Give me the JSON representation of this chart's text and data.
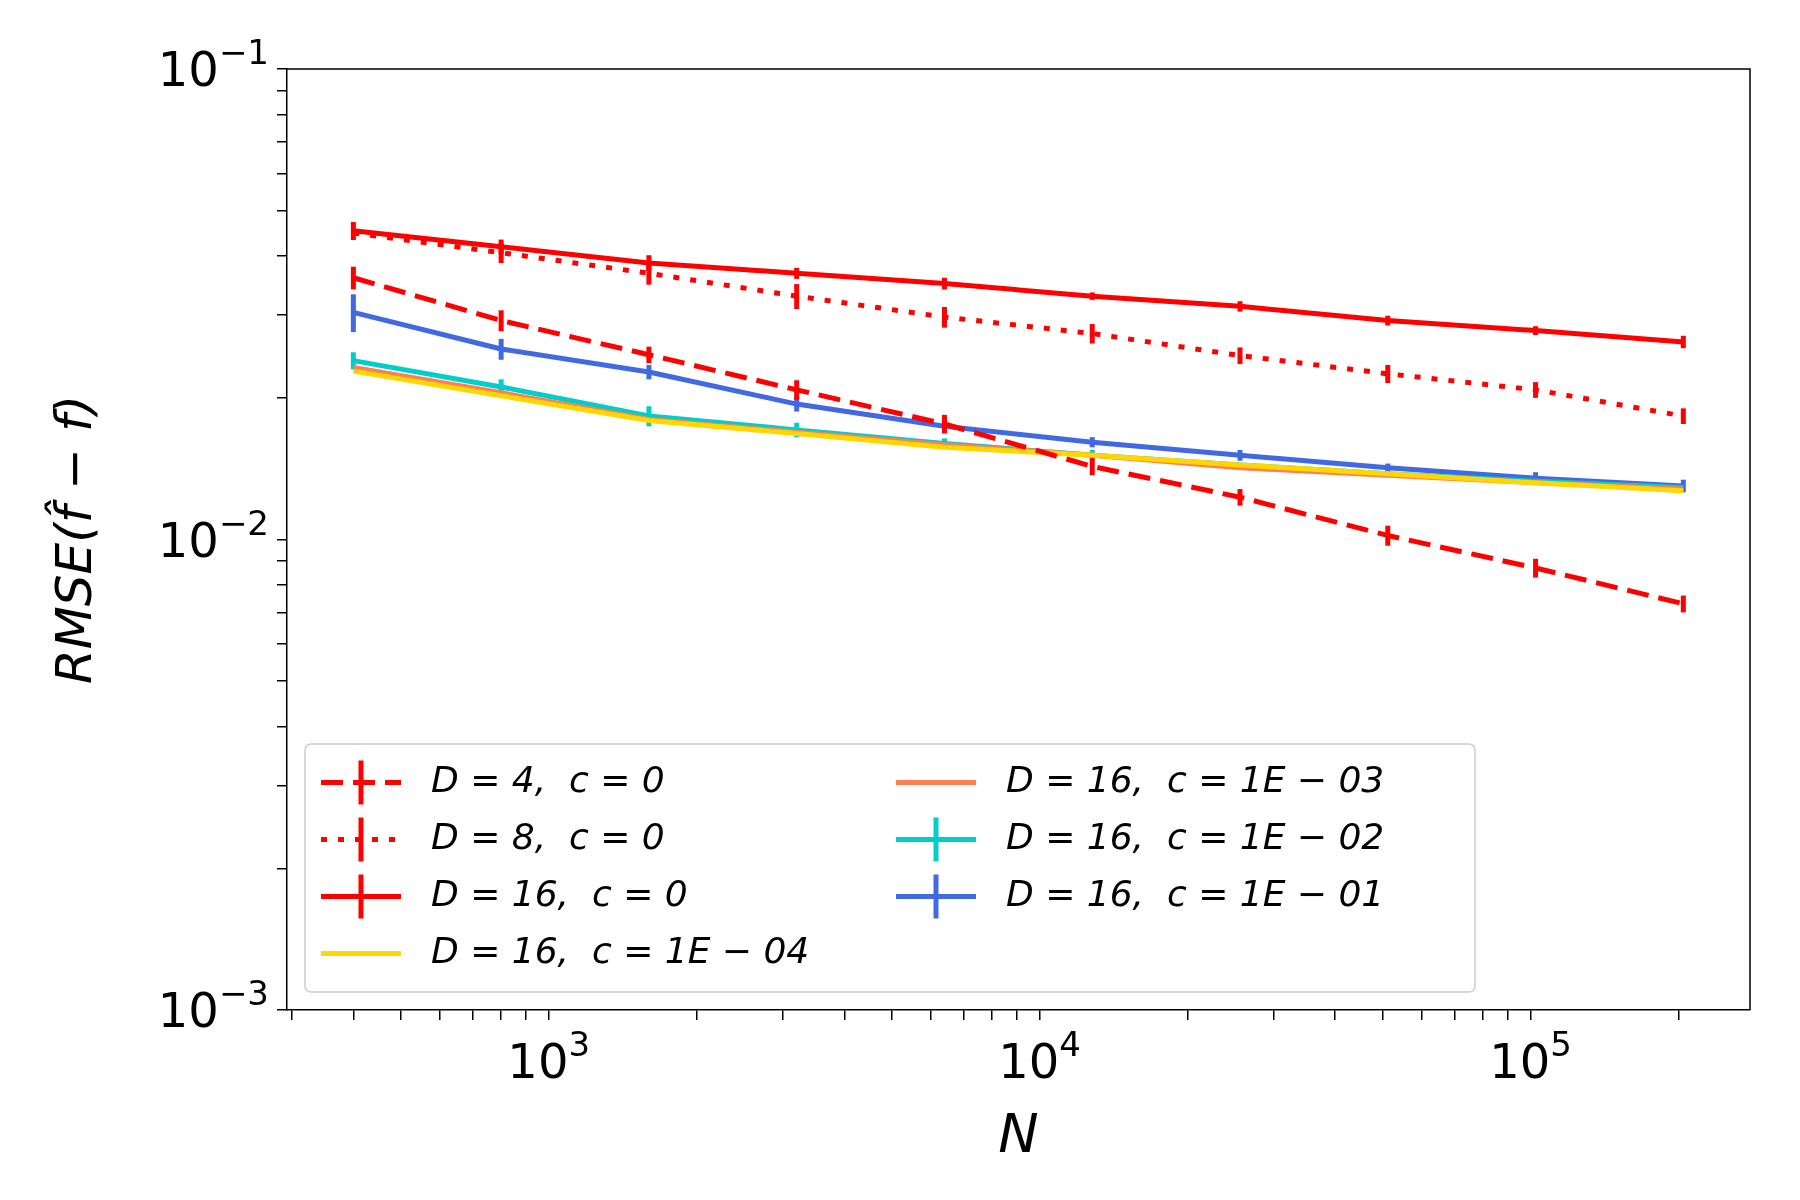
{
  "chart_data": {
    "type": "line",
    "xlabel": "N",
    "ylabel": "RMSE(f̂ − f)",
    "log": "xy",
    "grid": false,
    "legend": "bottom left",
    "marker": "none",
    "x": [
      400,
      800,
      1600,
      3200,
      6400,
      12800,
      25600,
      51200,
      102400,
      204800
    ],
    "xlim": [
      293,
      280000
    ],
    "xticks": [
      {
        "value": 300,
        "label": null
      },
      {
        "value": 400,
        "label": null
      },
      {
        "value": 500,
        "label": null
      },
      {
        "value": 600,
        "label": null
      },
      {
        "value": 700,
        "label": null
      },
      {
        "value": 800,
        "label": null
      },
      {
        "value": 900,
        "label": null
      },
      {
        "value": 1000,
        "label": "10$^{3}$"
      },
      {
        "value": 2000,
        "label": null
      },
      {
        "value": 3000,
        "label": null
      },
      {
        "value": 4000,
        "label": null
      },
      {
        "value": 5000,
        "label": null
      },
      {
        "value": 6000,
        "label": null
      },
      {
        "value": 7000,
        "label": null
      },
      {
        "value": 8000,
        "label": null
      },
      {
        "value": 9000,
        "label": null
      },
      {
        "value": 10000,
        "label": "10$^{4}$"
      },
      {
        "value": 20000,
        "label": null
      },
      {
        "value": 30000,
        "label": null
      },
      {
        "value": 40000,
        "label": null
      },
      {
        "value": 50000,
        "label": null
      },
      {
        "value": 60000,
        "label": null
      },
      {
        "value": 70000,
        "label": null
      },
      {
        "value": 80000,
        "label": null
      },
      {
        "value": 90000,
        "label": null
      },
      {
        "value": 100000,
        "label": "10$^{5}$"
      },
      {
        "value": 200000,
        "label": null
      }
    ],
    "ylim": [
      0.001,
      0.1
    ],
    "yticks": [
      {
        "value": 0.001,
        "label": "10$^{−3}$"
      },
      {
        "value": 0.002,
        "label": null
      },
      {
        "value": 0.003,
        "label": null
      },
      {
        "value": 0.004,
        "label": null
      },
      {
        "value": 0.005,
        "label": null
      },
      {
        "value": 0.006,
        "label": null
      },
      {
        "value": 0.007,
        "label": null
      },
      {
        "value": 0.008,
        "label": null
      },
      {
        "value": 0.009,
        "label": null
      },
      {
        "value": 0.01,
        "label": "10$^{−2}$"
      },
      {
        "value": 0.02,
        "label": null
      },
      {
        "value": 0.03,
        "label": null
      },
      {
        "value": 0.04,
        "label": null
      },
      {
        "value": 0.05,
        "label": null
      },
      {
        "value": 0.06,
        "label": null
      },
      {
        "value": 0.07,
        "label": null
      },
      {
        "value": 0.08,
        "label": null
      },
      {
        "value": 0.09,
        "label": null
      },
      {
        "value": 0.1,
        "label": "10$^{−1}$"
      }
    ],
    "series": [
      {
        "name": "D = 4,  c = 0",
        "color": "#ff0000",
        "line_style": "dashed",
        "values": [
          0.036,
          0.0292,
          0.0247,
          0.0208,
          0.0176,
          0.0143,
          0.0123,
          0.0102,
          0.0087,
          0.0073
        ],
        "errors": [
          0.002,
          0.0015,
          0.001,
          0.001,
          0.0008,
          0.0006,
          0.0005,
          0.0005,
          0.0004,
          0.0003
        ]
      },
      {
        "name": "D = 8,  c = 0",
        "color": "#ff0000",
        "line_style": "dotted",
        "values": [
          0.0448,
          0.0407,
          0.0368,
          0.0329,
          0.0297,
          0.0274,
          0.0246,
          0.0225,
          0.0208,
          0.0183
        ],
        "errors": [
          null,
          0.002,
          0.002,
          0.002,
          0.0015,
          0.0013,
          0.001,
          0.001,
          0.0008,
          0.0007
        ]
      },
      {
        "name": "D = 16,  c = 0",
        "color": "#ff0000",
        "line_style": "solid",
        "values": [
          0.0453,
          0.0419,
          0.0387,
          0.0368,
          0.035,
          0.0329,
          0.0313,
          0.0292,
          0.0278,
          0.0263
        ],
        "errors": [
          0.002,
          0.0015,
          0.0015,
          0.001,
          0.001,
          0.0006,
          0.0008,
          0.0007,
          0.0006,
          0.0008
        ]
      },
      {
        "name": "D = 16,  c = 1E − 04",
        "color": "#ffd700",
        "line_style": "solid",
        "values": [
          0.0228,
          0.0202,
          0.0179,
          0.0168,
          0.0157,
          0.0151,
          0.0144,
          0.0138,
          0.0132,
          0.0127
        ]
      },
      {
        "name": "D = 16,  c = 1E − 03",
        "color": "#ff7f50",
        "line_style": "solid",
        "values": [
          0.0232,
          0.0205,
          0.018,
          0.0169,
          0.0159,
          0.0151,
          0.0142,
          0.0137,
          0.0132,
          0.0128
        ]
      },
      {
        "name": "D = 16,  c = 1E − 02",
        "color": "#00cecb",
        "line_style": "solid",
        "values": [
          0.024,
          0.0211,
          0.0183,
          0.0171,
          0.016,
          0.0151,
          0.0144,
          0.0138,
          0.0133,
          0.0129
        ],
        "errors": [
          0.001,
          0.0008,
          0.0009,
          0.0006,
          0.0004,
          0.0004,
          null,
          null,
          null,
          null
        ]
      },
      {
        "name": "D = 16,  c = 1E − 01",
        "color": "#4169e1",
        "line_style": "solid",
        "values": [
          0.0304,
          0.0254,
          0.0227,
          0.0194,
          0.0174,
          0.0161,
          0.0151,
          0.0142,
          0.0135,
          0.013
        ],
        "errors": [
          0.0028,
          0.0013,
          0.0008,
          0.0007,
          null,
          0.0004,
          0.0004,
          0.0003,
          0.0004,
          0.0004
        ]
      }
    ]
  }
}
